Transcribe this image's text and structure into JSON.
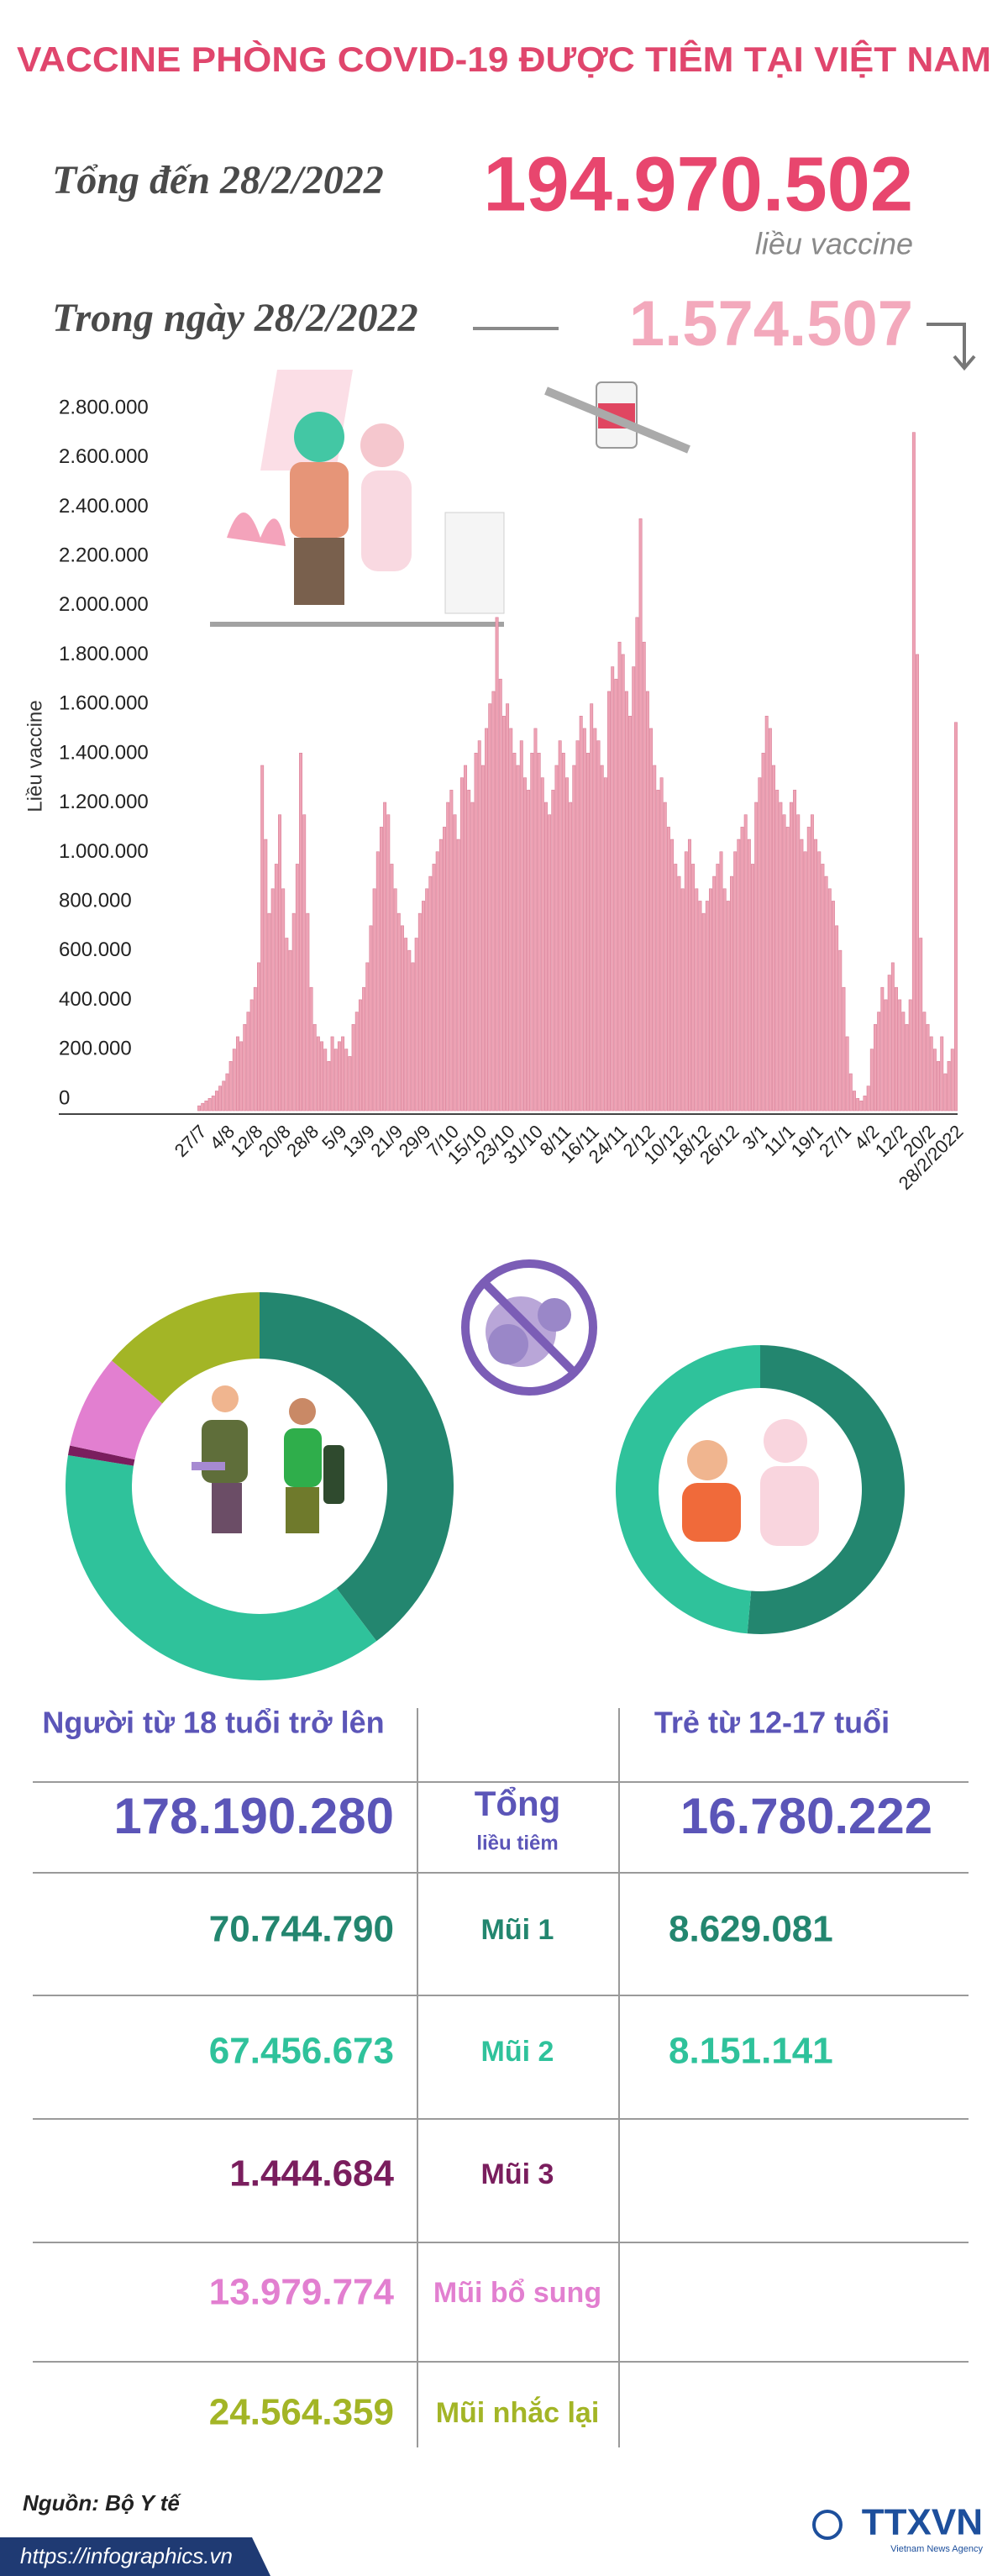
{
  "header": {
    "title": "VACCINE PHÒNG COVID-19 ĐƯỢC TIÊM TẠI VIỆT NAM",
    "total_label": "Tổng đến 28/2/2022",
    "total_value": "194.970.502",
    "total_unit": "liều vaccine",
    "daily_label": "Trong ngày 28/2/2022",
    "daily_value": "1.574.507"
  },
  "chart_data": [
    {
      "type": "bar",
      "y_label": "Liều vaccine",
      "color": "#eea3b5",
      "grid": false,
      "ylim": [
        0,
        2800000
      ],
      "yticks": [
        0,
        {
          "value": 200000,
          "label": "200.000"
        },
        {
          "value": 400000,
          "label": "400.000"
        },
        {
          "value": 600000,
          "label": "600.000"
        },
        {
          "value": 800000,
          "label": "800.000"
        },
        {
          "value": 1000000,
          "label": "1.000.000"
        },
        {
          "value": 1200000,
          "label": "1.200.000"
        },
        {
          "value": 1400000,
          "label": "1.400.000"
        },
        {
          "value": 1600000,
          "label": "1.600.000"
        },
        {
          "value": 1800000,
          "label": "1.800.000"
        },
        {
          "value": 2000000,
          "label": "2.000.000"
        },
        {
          "value": 2200000,
          "label": "2.200.000"
        },
        {
          "value": 2400000,
          "label": "2.400.000"
        },
        {
          "value": 2600000,
          "label": "2.600.000"
        },
        {
          "value": 2800000,
          "label": "2.800.000"
        }
      ],
      "categories": [
        "27/7",
        null,
        null,
        null,
        null,
        null,
        null,
        null,
        "4/8",
        null,
        null,
        null,
        null,
        null,
        null,
        null,
        "12/8",
        null,
        null,
        null,
        null,
        null,
        null,
        null,
        "20/8",
        null,
        null,
        null,
        null,
        null,
        null,
        null,
        "28/8",
        null,
        null,
        null,
        null,
        null,
        null,
        null,
        "5/9",
        null,
        null,
        null,
        null,
        null,
        null,
        null,
        "13/9",
        null,
        null,
        null,
        null,
        null,
        null,
        null,
        "21/9",
        null,
        null,
        null,
        null,
        null,
        null,
        null,
        "29/9",
        null,
        null,
        null,
        null,
        null,
        null,
        null,
        "7/10",
        null,
        null,
        null,
        null,
        null,
        null,
        null,
        "15/10",
        null,
        null,
        null,
        null,
        null,
        null,
        null,
        "23/10",
        null,
        null,
        null,
        null,
        null,
        null,
        null,
        "31/10",
        null,
        null,
        null,
        null,
        null,
        null,
        null,
        "8/11",
        null,
        null,
        null,
        null,
        null,
        null,
        null,
        "16/11",
        null,
        null,
        null,
        null,
        null,
        null,
        null,
        "24/11",
        null,
        null,
        null,
        null,
        null,
        null,
        null,
        "2/12",
        null,
        null,
        null,
        null,
        null,
        null,
        null,
        "10/12",
        null,
        null,
        null,
        null,
        null,
        null,
        null,
        "18/12",
        null,
        null,
        null,
        null,
        null,
        null,
        null,
        "26/12",
        null,
        null,
        null,
        null,
        null,
        null,
        null,
        "3/1",
        null,
        null,
        null,
        null,
        null,
        null,
        null,
        "11/1",
        null,
        null,
        null,
        null,
        null,
        null,
        null,
        "19/1",
        null,
        null,
        null,
        null,
        null,
        null,
        null,
        "27/1",
        null,
        null,
        null,
        null,
        null,
        null,
        null,
        "4/2",
        null,
        null,
        null,
        null,
        null,
        null,
        null,
        "12/2",
        null,
        null,
        null,
        null,
        null,
        null,
        null,
        "20/2",
        null,
        null,
        null,
        null,
        null,
        null,
        null,
        "28/2/2022"
      ],
      "values": [
        20000,
        30000,
        40000,
        50000,
        60000,
        80000,
        100000,
        120000,
        150000,
        200000,
        250000,
        300000,
        280000,
        350000,
        400000,
        450000,
        500000,
        600000,
        1400000,
        1100000,
        800000,
        900000,
        1000000,
        1200000,
        900000,
        700000,
        650000,
        800000,
        1000000,
        1450000,
        1200000,
        800000,
        500000,
        350000,
        300000,
        280000,
        250000,
        200000,
        300000,
        250000,
        280000,
        300000,
        250000,
        220000,
        350000,
        400000,
        450000,
        500000,
        600000,
        750000,
        900000,
        1050000,
        1150000,
        1250000,
        1200000,
        1000000,
        900000,
        800000,
        750000,
        700000,
        650000,
        600000,
        700000,
        800000,
        850000,
        900000,
        950000,
        1000000,
        1050000,
        1100000,
        1150000,
        1250000,
        1300000,
        1200000,
        1100000,
        1350000,
        1400000,
        1300000,
        1250000,
        1450000,
        1500000,
        1400000,
        1550000,
        1650000,
        1700000,
        2000000,
        1750000,
        1600000,
        1650000,
        1550000,
        1450000,
        1400000,
        1500000,
        1350000,
        1300000,
        1450000,
        1550000,
        1450000,
        1350000,
        1250000,
        1200000,
        1300000,
        1400000,
        1500000,
        1450000,
        1350000,
        1250000,
        1400000,
        1500000,
        1600000,
        1550000,
        1450000,
        1650000,
        1550000,
        1500000,
        1400000,
        1350000,
        1700000,
        1800000,
        1750000,
        1900000,
        1850000,
        1700000,
        1600000,
        1800000,
        2000000,
        2400000,
        1900000,
        1700000,
        1550000,
        1400000,
        1300000,
        1350000,
        1250000,
        1150000,
        1100000,
        1000000,
        950000,
        900000,
        1050000,
        1100000,
        1000000,
        900000,
        850000,
        800000,
        850000,
        900000,
        950000,
        1000000,
        1050000,
        900000,
        850000,
        950000,
        1050000,
        1100000,
        1150000,
        1200000,
        1100000,
        1000000,
        1250000,
        1350000,
        1450000,
        1600000,
        1550000,
        1400000,
        1300000,
        1250000,
        1200000,
        1150000,
        1250000,
        1300000,
        1200000,
        1100000,
        1050000,
        1150000,
        1200000,
        1100000,
        1050000,
        1000000,
        950000,
        900000,
        850000,
        750000,
        650000,
        500000,
        300000,
        150000,
        80000,
        50000,
        40000,
        60000,
        100000,
        250000,
        350000,
        400000,
        500000,
        450000,
        550000,
        600000,
        500000,
        450000,
        400000,
        350000,
        450000,
        2750000,
        1850000,
        700000,
        400000,
        350000,
        300000,
        250000,
        200000,
        300000,
        150000,
        200000,
        250000,
        1574507
      ]
    },
    {
      "type": "donut",
      "title": "Người từ 18 tuổi trở lên",
      "total": "178.190.280",
      "categories": [
        "Mũi 1",
        "Mũi 2",
        "Mũi 3",
        "Mũi bổ sung",
        "Mũi nhắc lại"
      ],
      "values": [
        70744790,
        67456673,
        1444684,
        13979774,
        24564359
      ],
      "value_labels": [
        "70.744.790",
        "67.456.673",
        "1.444.684",
        "13.979.774",
        "24.564.359"
      ],
      "colors": [
        "#23866f",
        "#2fc29b",
        "#7a1e5e",
        "#e27fd0",
        "#a3b526"
      ]
    },
    {
      "type": "donut",
      "title": "Trẻ từ 12-17 tuổi",
      "total": "16.780.222",
      "values": [
        8629081,
        8151141
      ],
      "value_labels": [
        "8.629.081",
        "8.151.141"
      ],
      "colors": [
        "#23866f",
        "#2fc29b"
      ]
    }
  ],
  "table": {
    "total_label": "Tổng",
    "total_sublabel": "liều tiêm"
  },
  "footer": {
    "source": "Nguồn: Bộ Y tế",
    "url": "https://infographics.vn",
    "logo": "TTXVN",
    "logo_sub": "Vietnam News Agency"
  }
}
